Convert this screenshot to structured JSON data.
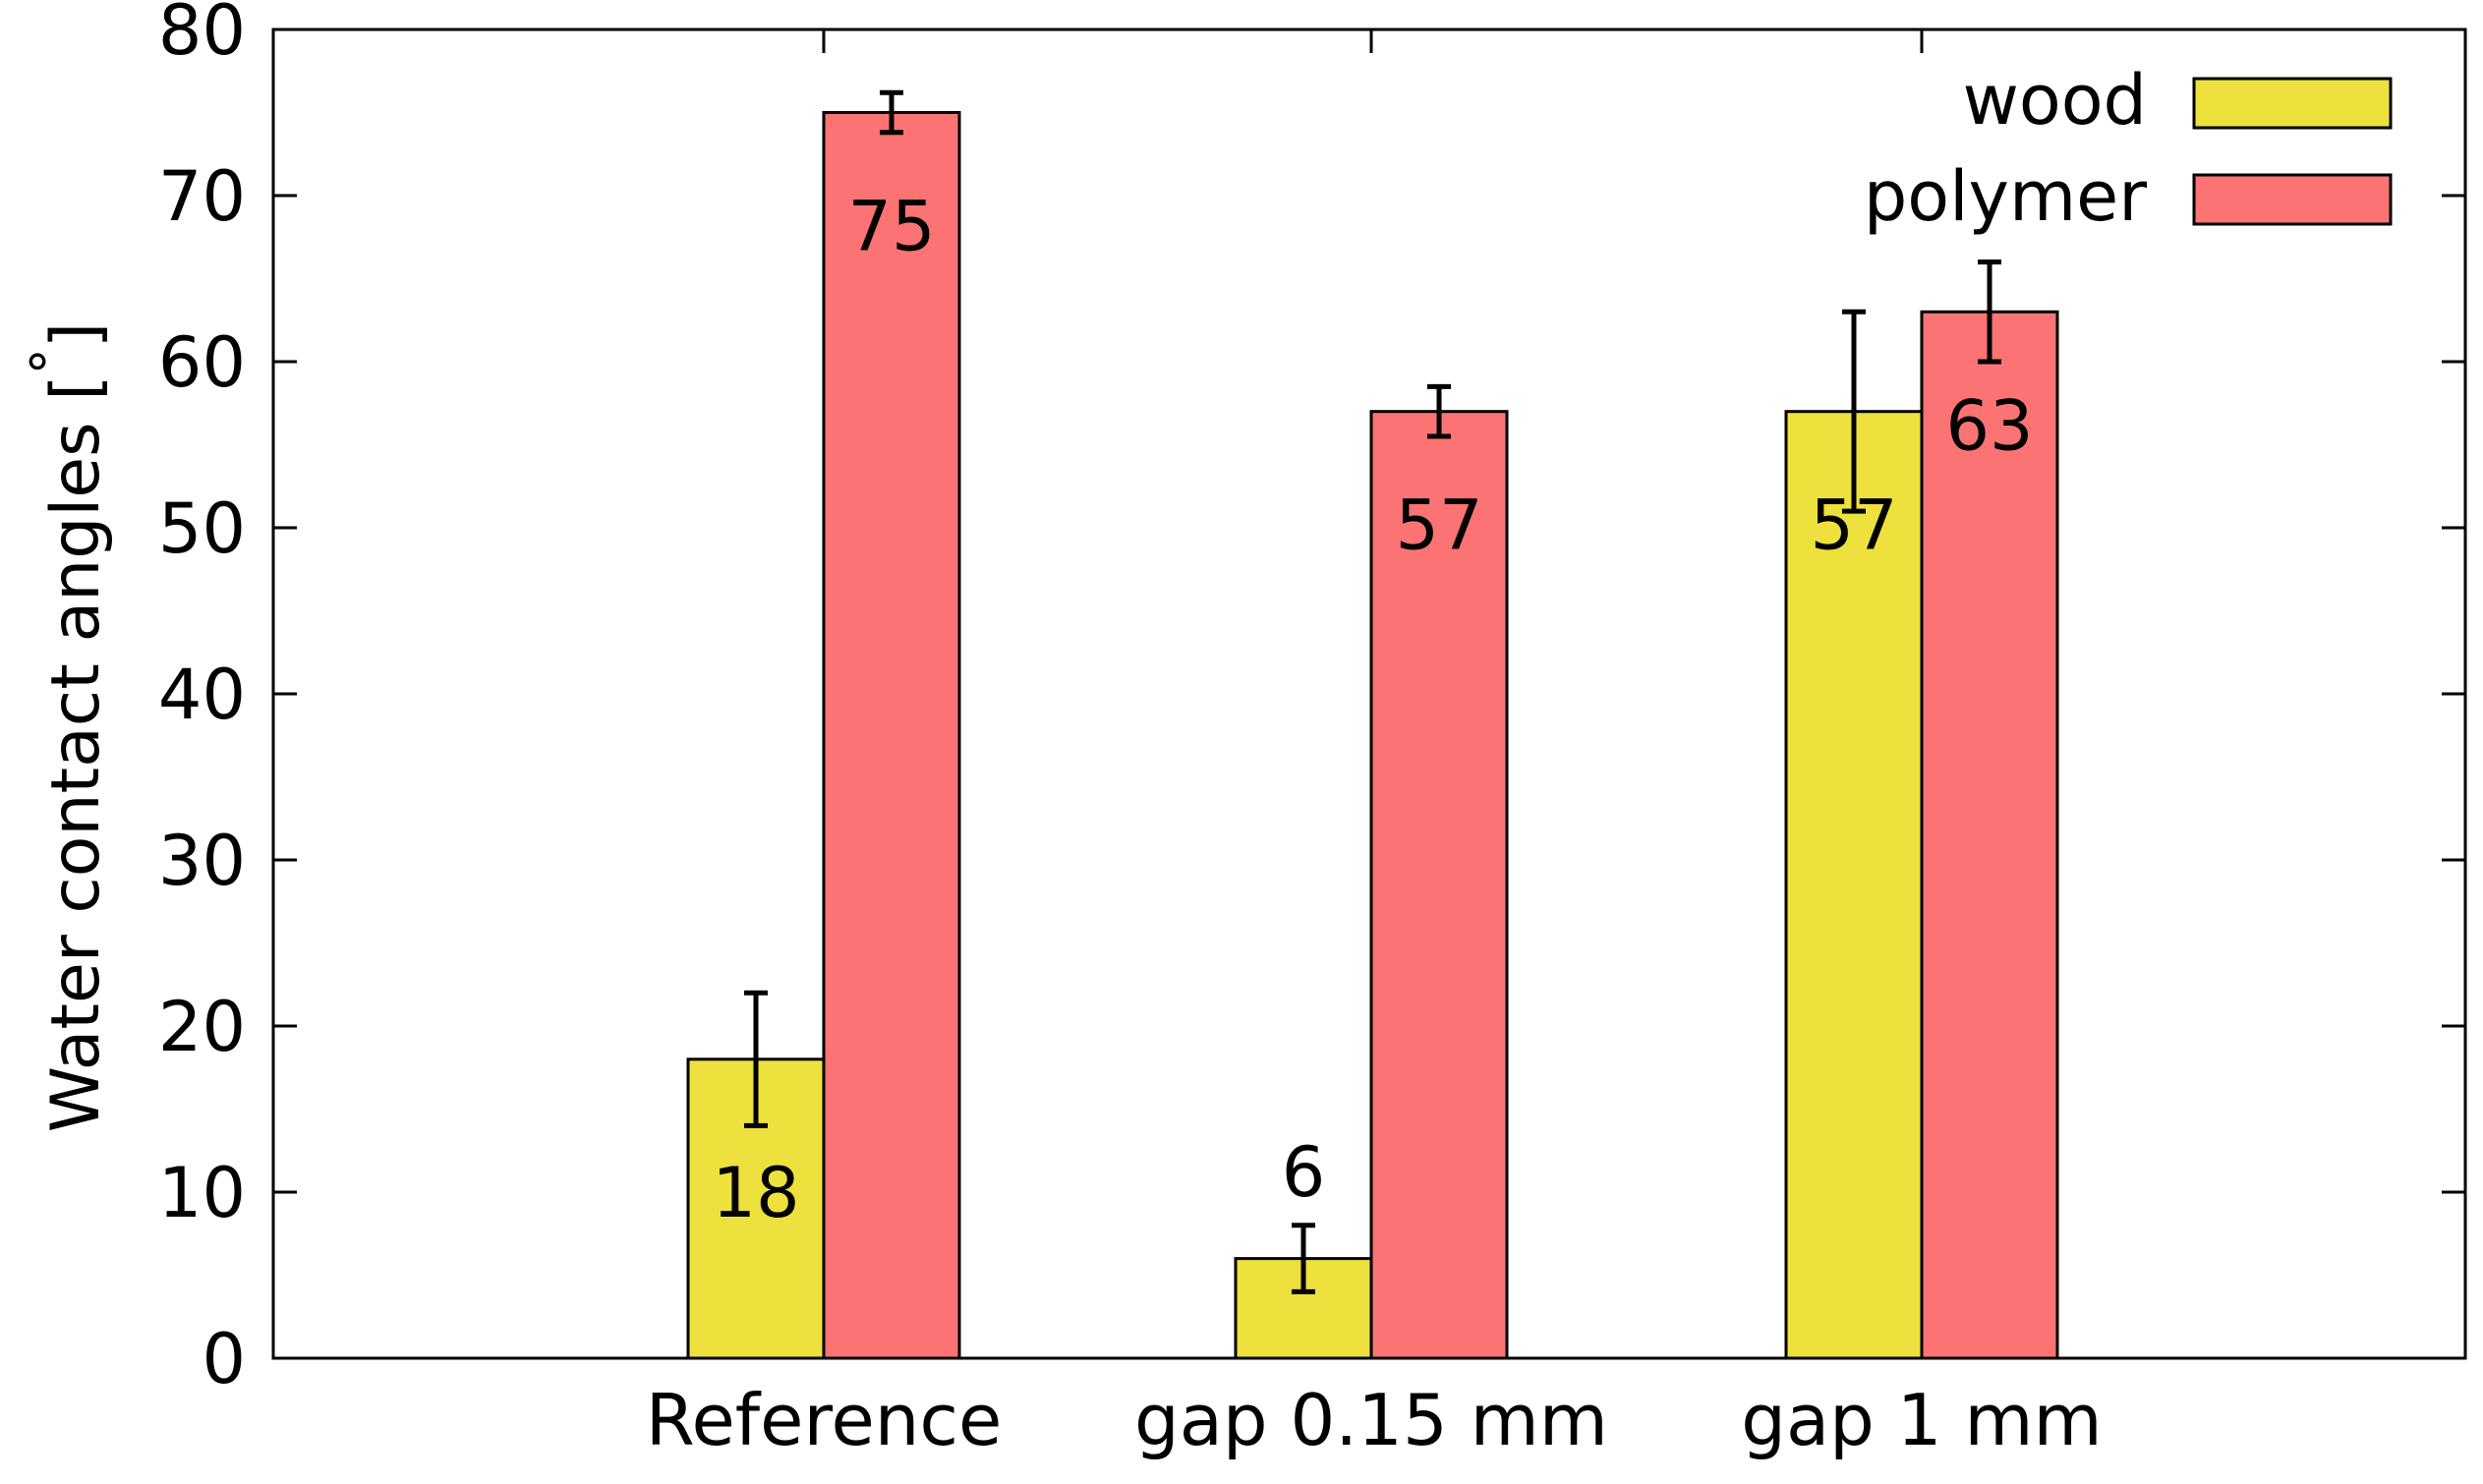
{
  "chart_data": {
    "type": "bar",
    "title": "",
    "xlabel": "",
    "ylabel": "Water contact angles [",
    "ylabel_unit": "°",
    "ylabel_close": "]",
    "ylim": [
      0,
      80
    ],
    "yticks": [
      0,
      10,
      20,
      30,
      40,
      50,
      60,
      70,
      80
    ],
    "grid": false,
    "legend_position": "top-right",
    "categories": [
      "Reference",
      "gap 0.15 mm",
      "gap 1 mm"
    ],
    "series": [
      {
        "name": "wood",
        "color": "#eee03d",
        "values": [
          18,
          6,
          57
        ],
        "errors": [
          4,
          2,
          6
        ],
        "labels": [
          "18",
          "6",
          "57"
        ],
        "label_positions": [
          "inside",
          "above",
          "inside"
        ]
      },
      {
        "name": "polymer",
        "color": "#fb7373",
        "values": [
          75,
          57,
          63
        ],
        "errors": [
          1.2,
          1.5,
          3
        ],
        "labels": [
          "75",
          "57",
          "63"
        ],
        "label_positions": [
          "inside",
          "inside",
          "inside"
        ]
      }
    ]
  }
}
